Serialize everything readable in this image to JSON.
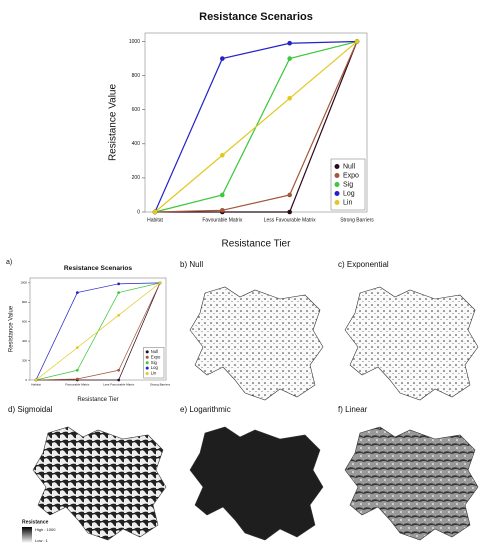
{
  "chart_data": {
    "type": "line",
    "title": "Resistance Scenarios",
    "x_label": "Resistance Tier",
    "y_label": "Resistance Value",
    "categories": [
      "Habitat",
      "Favourable Matrix",
      "Less Favourable Matrix",
      "Strong Barriers"
    ],
    "series": [
      {
        "name": "Null",
        "color": "#2b0a1c",
        "values": [
          0,
          0,
          0,
          1000
        ]
      },
      {
        "name": "Expo",
        "color": "#a4553a",
        "values": [
          0,
          10,
          100,
          1000
        ]
      },
      {
        "name": "Sig",
        "color": "#3cc83c",
        "values": [
          0,
          100,
          900,
          1000
        ]
      },
      {
        "name": "Log",
        "color": "#2323c8",
        "values": [
          0,
          900,
          990,
          1000
        ]
      },
      {
        "name": "Lin",
        "color": "#e3c81e",
        "values": [
          0,
          333,
          667,
          1000
        ]
      }
    ],
    "ylim": [
      0,
      1050
    ],
    "yticks": [
      0,
      200,
      400,
      600,
      800,
      1000
    ],
    "legend": "bottom-right"
  },
  "panels": {
    "a": "a)",
    "b": "b) Null",
    "c": "c) Exponential",
    "d": "d) Sigmoidal",
    "e": "e) Logarithmic",
    "f": "f) Linear"
  },
  "map_legend": {
    "title": "Resistance",
    "high": "High : 1000",
    "low": "Low : 1"
  }
}
